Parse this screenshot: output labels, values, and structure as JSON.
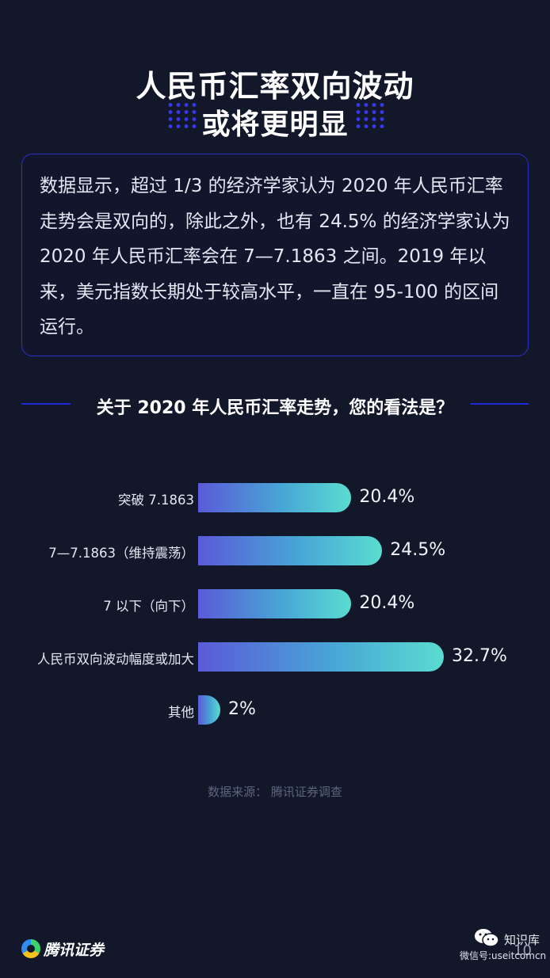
{
  "header": {
    "title_line1": "人民币汇率双向波动",
    "title_line2": "或将更明显"
  },
  "info": {
    "text": "数据显示，超过 1/3 的经济学家认为 2020 年人民币汇率走势会是双向的，除此之外，也有 24.5% 的经济学家认为 2020 年人民币汇率会在 7—7.1863 之间。2019 年以来，美元指数长期处于较高水平，一直在 95-100 的区间运行。"
  },
  "chart_data": {
    "type": "bar",
    "orientation": "horizontal",
    "title": "关于 2020 年人民币汇率走势，您的看法是？",
    "categories": [
      "突破 7.1863",
      "7—7.1863（维持震荡）",
      "7 以下（向下）",
      "人民币双向波动幅度或加大",
      "其他"
    ],
    "values": [
      20.4,
      24.5,
      20.4,
      32.7,
      2
    ],
    "value_labels": [
      "20.4%",
      "24.5%",
      "20.4%",
      "32.7%",
      "2%"
    ],
    "unit": "%",
    "colors": {
      "start": "#5b5ad8",
      "end": "#5adcd0"
    },
    "source": "数据来源：  腾讯证券调查"
  },
  "footer": {
    "logo_text": "腾讯证券",
    "logo_icon": "tencent-logo-icon",
    "watermark_name": "知识库",
    "watermark_id": "微信号:useitcomcn",
    "page_number": "10"
  },
  "colors": {
    "background": "#13172a",
    "accent_blue": "#1f2ad8",
    "bar_start": "#5b5ad8",
    "bar_end": "#5adcd0"
  }
}
